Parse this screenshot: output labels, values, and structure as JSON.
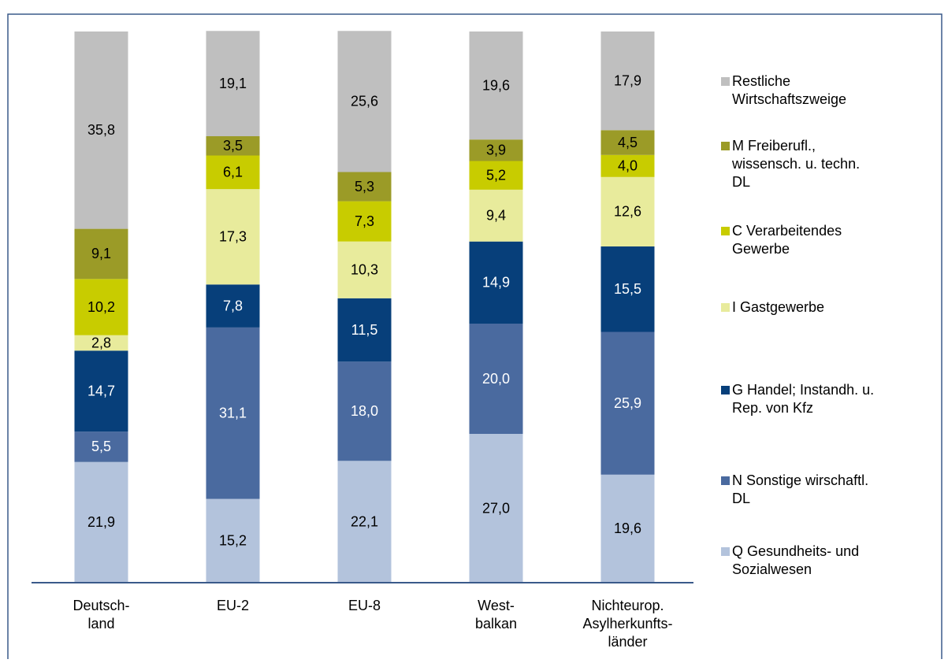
{
  "chart_data": {
    "type": "stacked_bar",
    "categories": [
      "Deutsch-\nland",
      "EU-2",
      "EU-8",
      "West-\nbalkan",
      "Nichteurop.\nAsylherkunfts-\nländer"
    ],
    "ylim": [
      0,
      100
    ],
    "series": [
      {
        "name": "Q Gesundheits- und Sozialwesen",
        "color": "#b3c3dc",
        "values": [
          21.9,
          15.2,
          22.1,
          27.0,
          19.6
        ],
        "value_labels": [
          "21,9",
          "15,2",
          "22,1",
          "27,0",
          "19,6"
        ]
      },
      {
        "name": "N Sonstige wirschaftl. DL",
        "color": "#4a6a9f",
        "values": [
          5.5,
          31.1,
          18.0,
          20.0,
          25.9
        ],
        "value_labels": [
          "5,5",
          "31,1",
          "18,0",
          "20,0",
          "25,9"
        ]
      },
      {
        "name": "G Handel; Instandh. u. Rep. von Kfz",
        "color": "#073f7a",
        "values": [
          14.7,
          7.8,
          11.5,
          14.9,
          15.5
        ],
        "value_labels": [
          "14,7",
          "7,8",
          "11,5",
          "14,9",
          "15,5"
        ]
      },
      {
        "name": "I Gastgewerbe",
        "color": "#e8eb9c",
        "values": [
          2.8,
          17.3,
          10.3,
          9.4,
          12.6
        ],
        "value_labels": [
          "2,8",
          "17,3",
          "10,3",
          "9,4",
          "12,6"
        ]
      },
      {
        "name": "C Verarbeitendes Gewerbe",
        "color": "#c8cc00",
        "values": [
          10.2,
          6.1,
          7.3,
          5.2,
          4.0
        ],
        "value_labels": [
          "10,2",
          "6,1",
          "7,3",
          "5,2",
          "4,0"
        ]
      },
      {
        "name": "M Freiberufl., wissensch. u. techn. DL",
        "color": "#9b9b27",
        "values": [
          9.1,
          3.5,
          5.3,
          3.9,
          4.5
        ],
        "value_labels": [
          "9,1",
          "3,5",
          "5,3",
          "3,9",
          "4,5"
        ]
      },
      {
        "name": "Restliche Wirtschaftszweige",
        "color": "#bfbfbf",
        "values": [
          35.8,
          19.1,
          25.6,
          19.6,
          17.9
        ],
        "value_labels": [
          "35,8",
          "19,1",
          "25,6",
          "19,6",
          "17,9"
        ]
      }
    ],
    "legend": "right"
  }
}
